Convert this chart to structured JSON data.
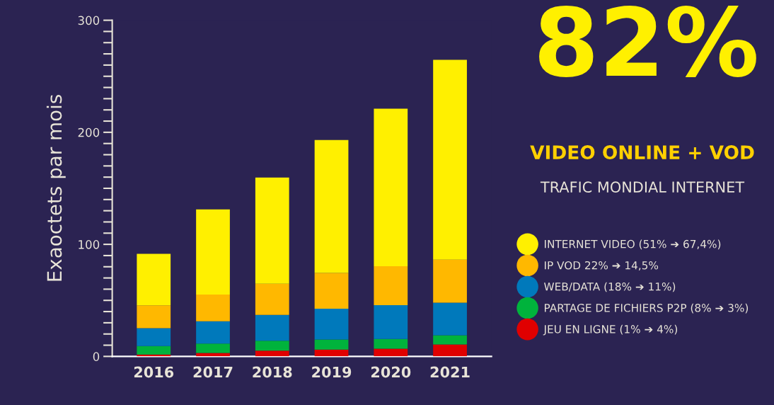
{
  "chart_data": {
    "type": "bar",
    "stacked": true,
    "title": "82%",
    "subtitle": "VIDEO ONLINE + VOD",
    "annotations": [
      "TRAFIC MONDIAL INTERNET"
    ],
    "ylabel": "Exaoctets par mois",
    "categories": [
      "2016",
      "2017",
      "2018",
      "2019",
      "2020",
      "2021"
    ],
    "series": [
      {
        "name": "JEU EN LIGNE (1% ➔ 4%)",
        "color": "#e00000",
        "values": [
          1.7,
          3.0,
          5.1,
          6.0,
          6.9,
          10.7
        ]
      },
      {
        "name": "PARTAGE DE FICHIERS P2P (8% ➔ 3%)",
        "color": "#00b33c",
        "values": [
          7.5,
          8.4,
          8.8,
          9.0,
          8.7,
          8.1
        ]
      },
      {
        "name": "WEB/DATA (18% ➔ 11%)",
        "color": "#0079bb",
        "values": [
          16.0,
          19.9,
          23.2,
          27.6,
          30.2,
          29.2
        ]
      },
      {
        "name": "IP VOD 22% ➔ 14,5%",
        "color": "#ffb800",
        "values": [
          20.4,
          23.9,
          27.8,
          31.9,
          34.7,
          38.3
        ]
      },
      {
        "name": "INTERNET VIDEO (51% ➔ 67,4%)",
        "color": "#fff000",
        "values": [
          46.0,
          76.0,
          94.8,
          118.6,
          140.5,
          178.3
        ]
      }
    ],
    "ylim": [
      0,
      300
    ],
    "yticks": [
      0,
      {
        "value": 10,
        "label": null
      },
      {
        "value": 20,
        "label": null
      },
      {
        "value": 30,
        "label": null
      },
      {
        "value": 40,
        "label": null
      },
      {
        "value": 50,
        "label": null
      },
      {
        "value": 60,
        "label": null
      },
      {
        "value": 70,
        "label": null
      },
      {
        "value": 80,
        "label": null
      },
      {
        "value": 90,
        "label": null
      },
      100,
      {
        "value": 110,
        "label": null
      },
      {
        "value": 120,
        "label": null
      },
      {
        "value": 130,
        "label": null
      },
      {
        "value": 140,
        "label": null
      },
      {
        "value": 150,
        "label": null
      },
      {
        "value": 160,
        "label": null
      },
      {
        "value": 170,
        "label": null
      },
      {
        "value": 180,
        "label": null
      },
      {
        "value": 190,
        "label": null
      },
      200,
      {
        "value": 210,
        "label": null
      },
      {
        "value": 220,
        "label": null
      },
      {
        "value": 230,
        "label": null
      },
      {
        "value": 240,
        "label": null
      },
      {
        "value": 250,
        "label": null
      },
      {
        "value": 260,
        "label": null
      },
      {
        "value": 270,
        "label": null
      },
      {
        "value": 280,
        "label": null
      },
      {
        "value": 290,
        "label": null
      },
      300
    ],
    "grid": false,
    "legend": "right"
  }
}
